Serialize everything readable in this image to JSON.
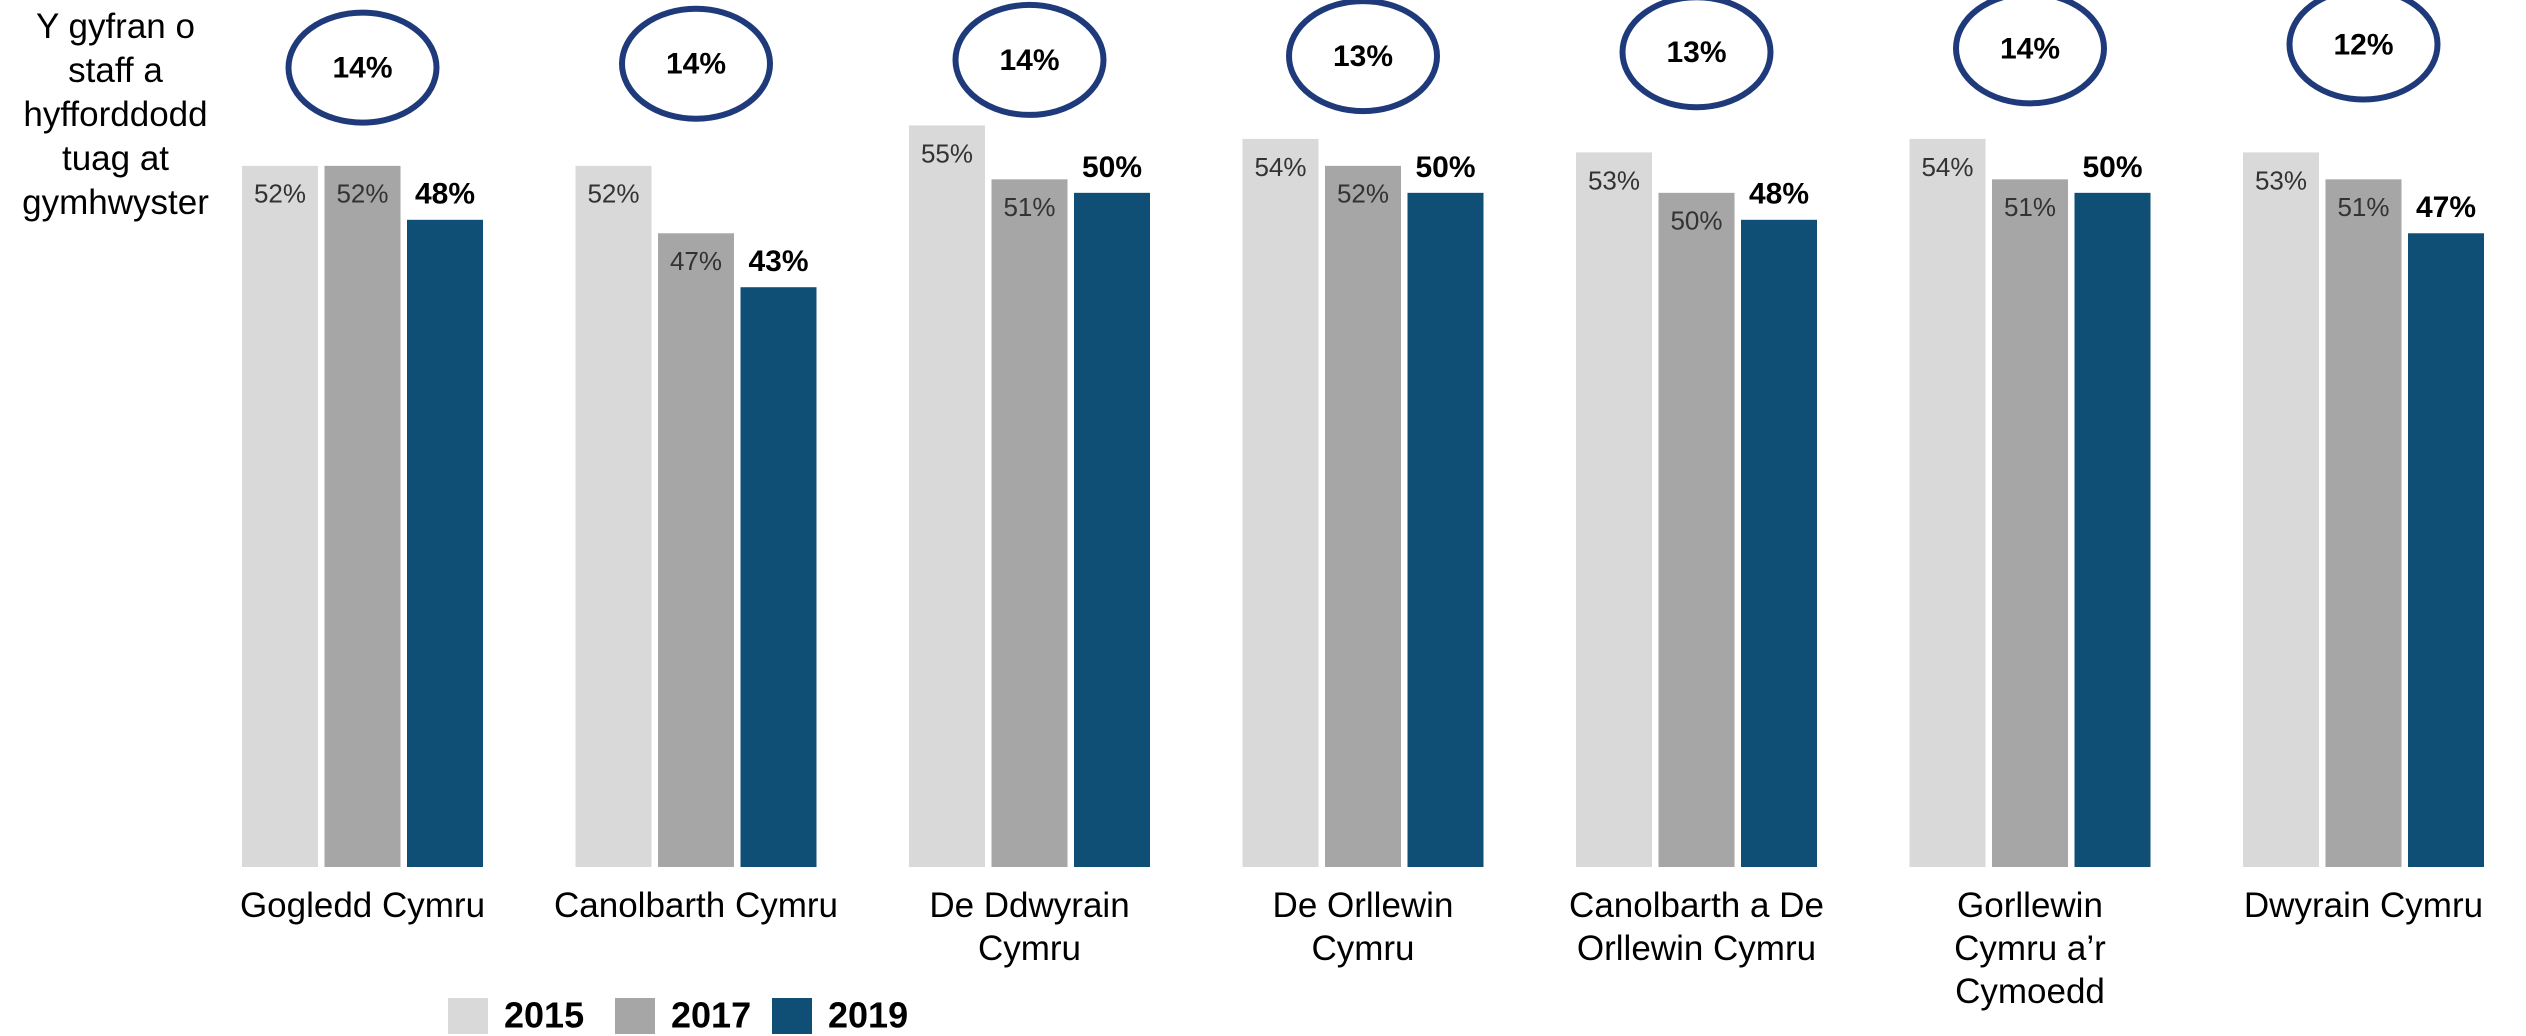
{
  "chart_data": {
    "type": "bar",
    "ylabel": "Y gyfran o staff a hyfforddodd tuag at gymhwyster",
    "categories": [
      "Gogledd Cymru",
      "Canolbarth Cymru",
      "De Ddwyrain Cymru",
      "De Orllewin Cymru",
      "Canolbarth a De Orllewin Cymru",
      "Gorllewin Cymru a’r Cymoedd",
      "Dwyrain Cymru"
    ],
    "series": [
      {
        "name": "2015",
        "color": "#d9d9d9",
        "values": [
          52,
          52,
          55,
          54,
          53,
          54,
          53
        ],
        "value_labels": [
          "52%",
          "52%",
          "55%",
          "54%",
          "53%",
          "54%",
          "53%"
        ]
      },
      {
        "name": "2017",
        "color": "#a6a6a6",
        "values": [
          52,
          47,
          51,
          52,
          50,
          51,
          51
        ],
        "value_labels": [
          "52%",
          "47%",
          "51%",
          "52%",
          "50%",
          "51%",
          "51%"
        ]
      },
      {
        "name": "2019",
        "color": "#0f4e75",
        "values": [
          48,
          43,
          50,
          50,
          48,
          50,
          47
        ],
        "value_labels": [
          "48%",
          "43%",
          "50%",
          "50%",
          "48%",
          "50%",
          "47%"
        ]
      }
    ],
    "annotations": [
      {
        "value": 14,
        "label": "14%"
      },
      {
        "value": 14,
        "label": "14%"
      },
      {
        "value": 14,
        "label": "14%"
      },
      {
        "value": 13,
        "label": "13%"
      },
      {
        "value": 13,
        "label": "13%"
      },
      {
        "value": 14,
        "label": "14%"
      },
      {
        "value": 12,
        "label": "12%"
      }
    ],
    "ylim": [
      0,
      60
    ]
  }
}
